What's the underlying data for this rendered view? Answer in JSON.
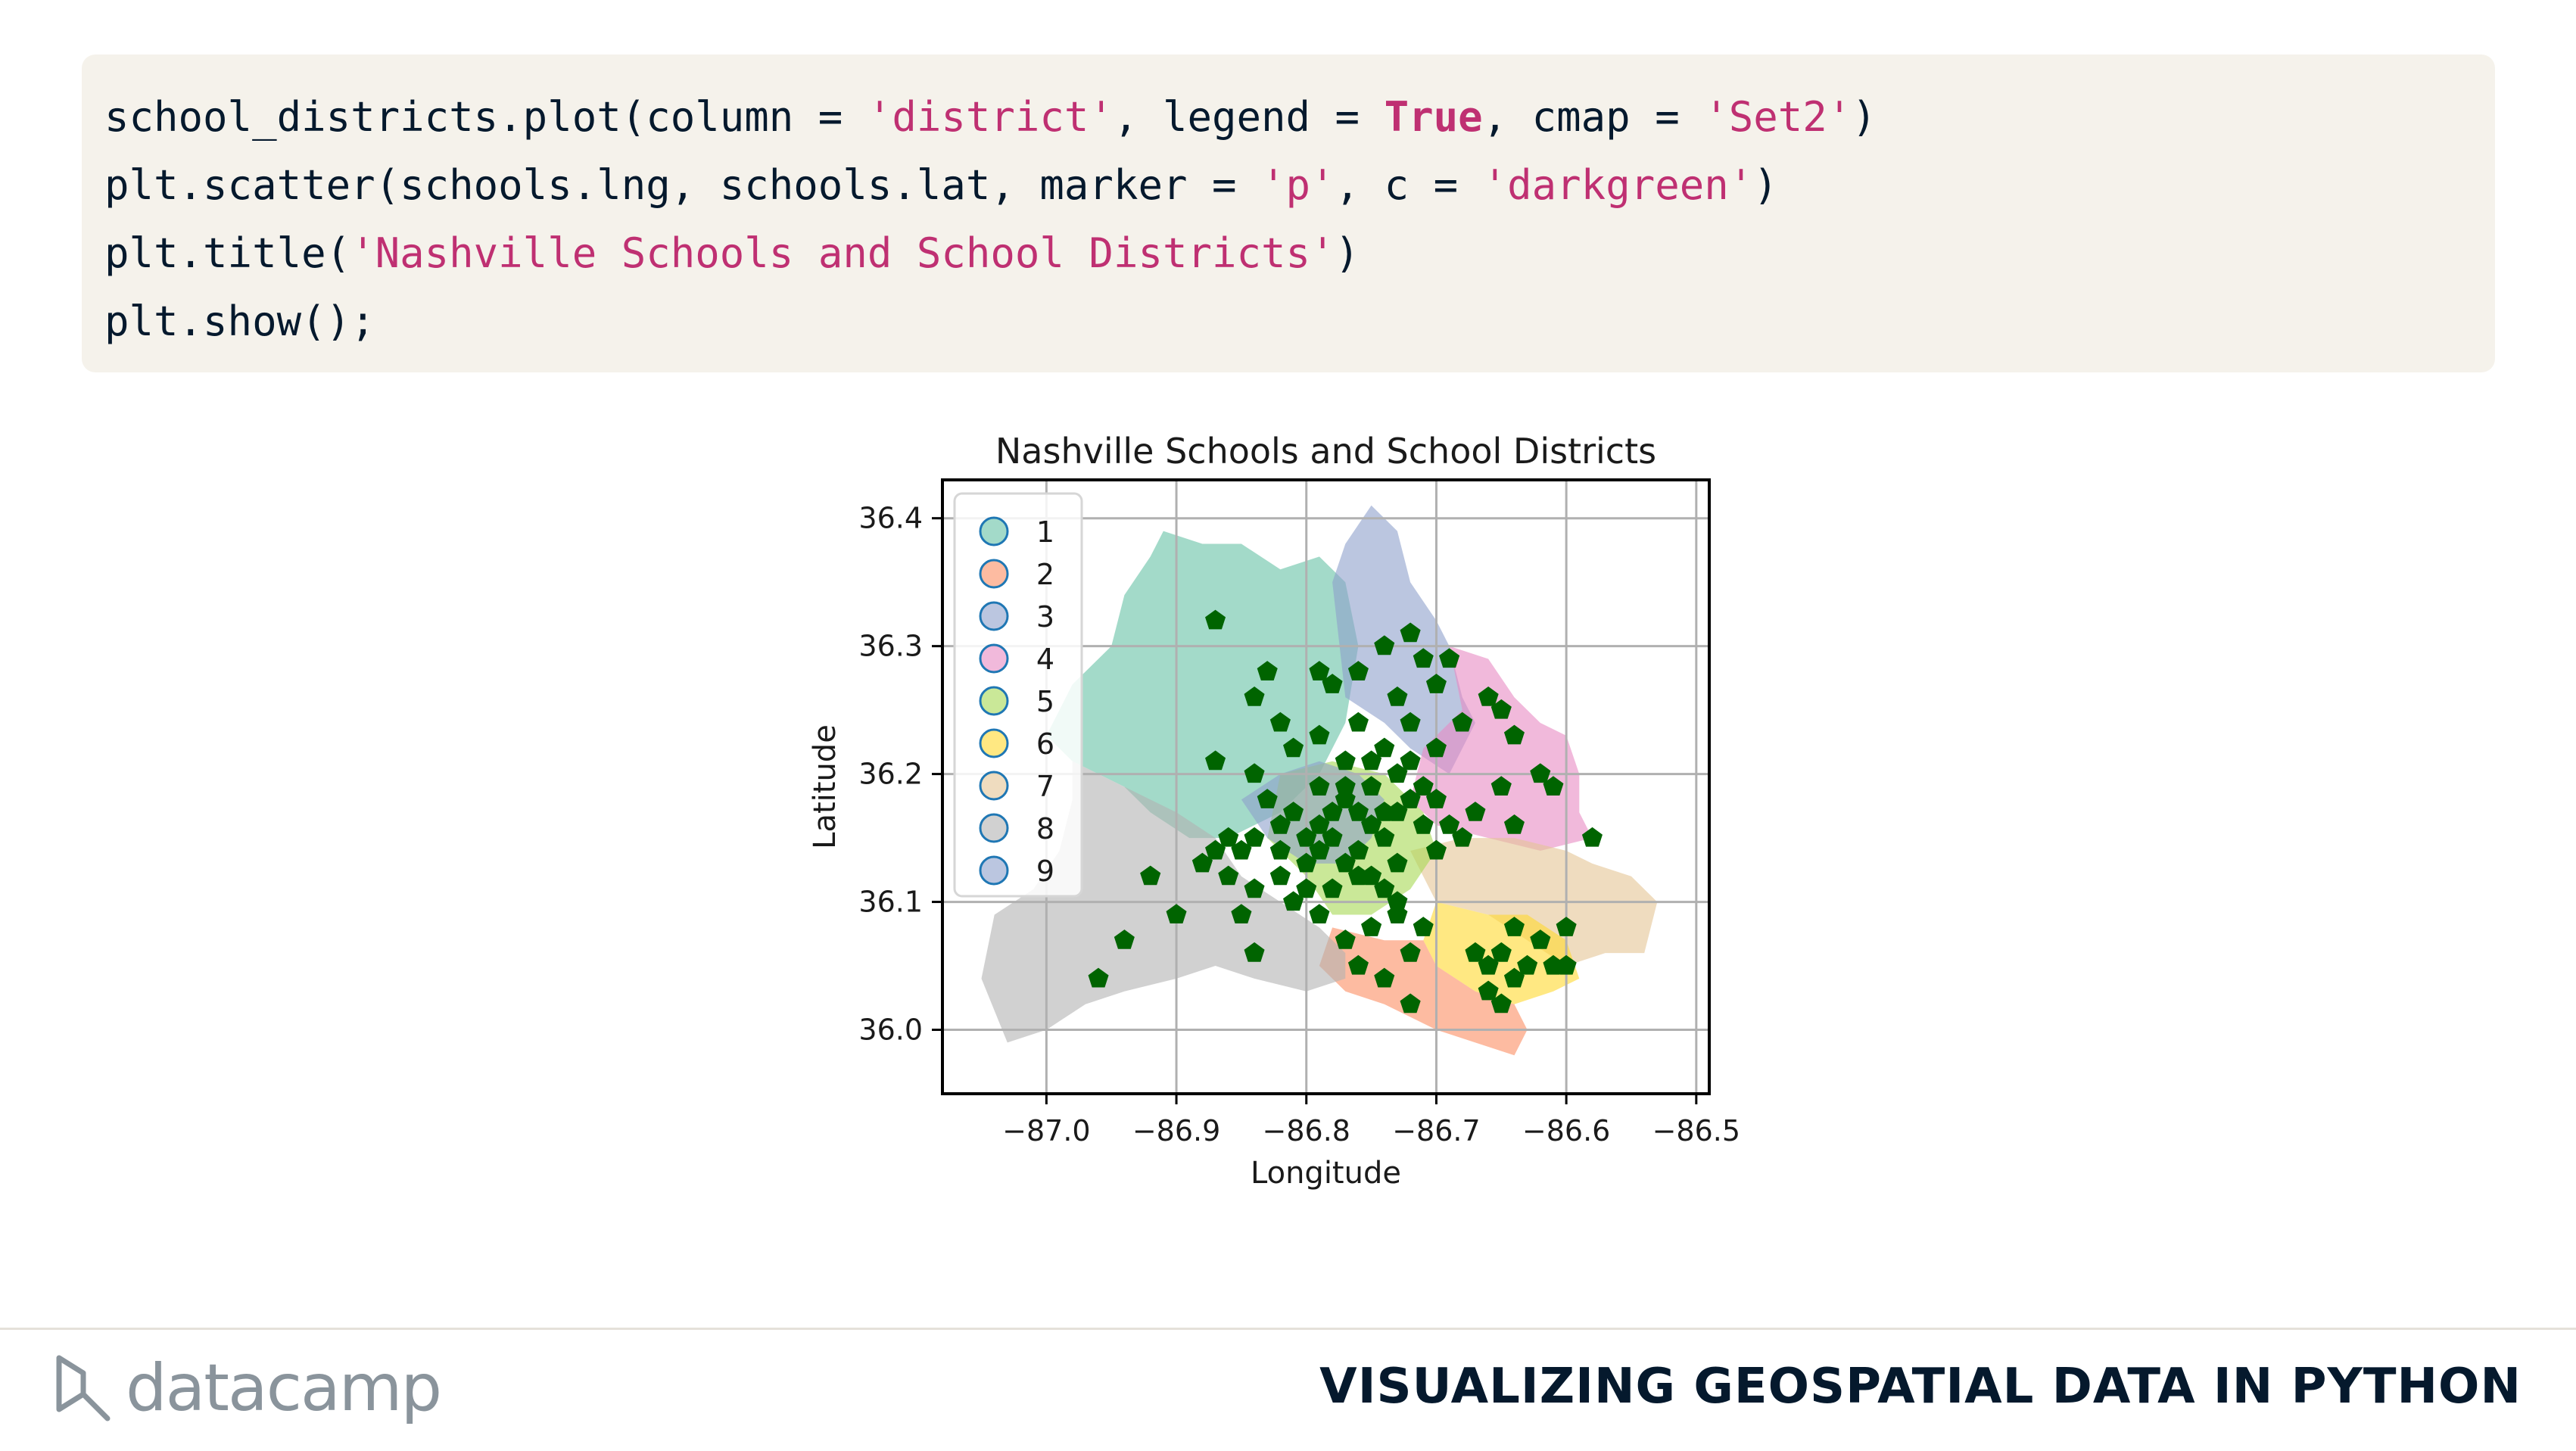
{
  "code": {
    "lines": [
      [
        {
          "t": "school_districts.plot(column = ",
          "k": "p"
        },
        {
          "t": "'district'",
          "k": "s"
        },
        {
          "t": ", legend = ",
          "k": "p"
        },
        {
          "t": "True",
          "k": "kw"
        },
        {
          "t": ", cmap = ",
          "k": "p"
        },
        {
          "t": "'Set2'",
          "k": "s"
        },
        {
          "t": ")",
          "k": "p"
        }
      ],
      [
        {
          "t": "plt.scatter(schools.lng, schools.lat, marker = ",
          "k": "p"
        },
        {
          "t": "'p'",
          "k": "s"
        },
        {
          "t": ", c = ",
          "k": "p"
        },
        {
          "t": "'darkgreen'",
          "k": "s"
        },
        {
          "t": ")",
          "k": "p"
        }
      ],
      [
        {
          "t": "plt.title(",
          "k": "p"
        },
        {
          "t": "'Nashville Schools and School Districts'",
          "k": "s"
        },
        {
          "t": ")",
          "k": "p"
        }
      ],
      [
        {
          "t": "plt.show();",
          "k": "p"
        }
      ]
    ]
  },
  "chart_data": {
    "type": "scatter",
    "title": "Nashville Schools and School Districts",
    "xlabel": "Longitude",
    "ylabel": "Latitude",
    "xlim": [
      -87.08,
      -86.49
    ],
    "ylim": [
      35.95,
      36.43
    ],
    "xticks": [
      -87.0,
      -86.9,
      -86.8,
      -86.7,
      -86.6,
      -86.5
    ],
    "xtick_labels": [
      "−87.0",
      "−86.9",
      "−86.8",
      "−86.7",
      "−86.6",
      "−86.5"
    ],
    "yticks": [
      36.0,
      36.1,
      36.2,
      36.3,
      36.4
    ],
    "ytick_labels": [
      "36.0",
      "36.1",
      "36.2",
      "36.3",
      "36.4"
    ],
    "grid": true,
    "legend_position": "upper-left",
    "legend": [
      {
        "label": "1",
        "color": "#66c2a5"
      },
      {
        "label": "2",
        "color": "#fc8d62"
      },
      {
        "label": "3",
        "color": "#8da0cb"
      },
      {
        "label": "4",
        "color": "#e78ac3"
      },
      {
        "label": "5",
        "color": "#a6d854"
      },
      {
        "label": "6",
        "color": "#ffd92f"
      },
      {
        "label": "7",
        "color": "#e5c494"
      },
      {
        "label": "8",
        "color": "#b3b3b3"
      },
      {
        "label": "9",
        "color": "#8da0cb"
      }
    ],
    "district_fill_opacity": 0.6,
    "districts": [
      {
        "district": "1",
        "color": "#66c2a5",
        "polygon": [
          [
            -86.91,
            36.39
          ],
          [
            -86.88,
            36.38
          ],
          [
            -86.85,
            36.38
          ],
          [
            -86.82,
            36.36
          ],
          [
            -86.79,
            36.37
          ],
          [
            -86.77,
            36.35
          ],
          [
            -86.76,
            36.3
          ],
          [
            -86.77,
            36.24
          ],
          [
            -86.79,
            36.2
          ],
          [
            -86.82,
            36.17
          ],
          [
            -86.86,
            36.15
          ],
          [
            -86.89,
            36.15
          ],
          [
            -86.92,
            36.17
          ],
          [
            -86.94,
            36.19
          ],
          [
            -86.98,
            36.21
          ],
          [
            -87.0,
            36.23
          ],
          [
            -86.98,
            36.27
          ],
          [
            -86.95,
            36.3
          ],
          [
            -86.94,
            36.34
          ],
          [
            -86.92,
            36.37
          ]
        ]
      },
      {
        "district": "3",
        "color": "#8da0cb",
        "polygon": [
          [
            -86.78,
            36.35
          ],
          [
            -86.77,
            36.38
          ],
          [
            -86.75,
            36.41
          ],
          [
            -86.73,
            36.39
          ],
          [
            -86.72,
            36.35
          ],
          [
            -86.7,
            36.32
          ],
          [
            -86.69,
            36.3
          ],
          [
            -86.68,
            36.26
          ],
          [
            -86.67,
            36.24
          ],
          [
            -86.69,
            36.2
          ],
          [
            -86.72,
            36.22
          ],
          [
            -86.74,
            36.24
          ],
          [
            -86.77,
            36.26
          ]
        ]
      },
      {
        "district": "4",
        "color": "#e78ac3",
        "polygon": [
          [
            -86.69,
            36.3
          ],
          [
            -86.66,
            36.29
          ],
          [
            -86.64,
            36.26
          ],
          [
            -86.62,
            36.24
          ],
          [
            -86.6,
            36.23
          ],
          [
            -86.59,
            36.2
          ],
          [
            -86.59,
            36.17
          ],
          [
            -86.58,
            36.15
          ],
          [
            -86.62,
            36.14
          ],
          [
            -86.66,
            36.15
          ],
          [
            -86.7,
            36.16
          ],
          [
            -86.72,
            36.18
          ],
          [
            -86.71,
            36.22
          ],
          [
            -86.68,
            36.25
          ]
        ]
      },
      {
        "district": "7",
        "color": "#e5c494",
        "polygon": [
          [
            -86.72,
            36.14
          ],
          [
            -86.68,
            36.15
          ],
          [
            -86.64,
            36.15
          ],
          [
            -86.6,
            36.14
          ],
          [
            -86.58,
            36.13
          ],
          [
            -86.55,
            36.12
          ],
          [
            -86.53,
            36.1
          ],
          [
            -86.54,
            36.06
          ],
          [
            -86.57,
            36.06
          ],
          [
            -86.6,
            36.05
          ],
          [
            -86.63,
            36.07
          ],
          [
            -86.66,
            36.09
          ],
          [
            -86.7,
            36.1
          ]
        ]
      },
      {
        "district": "6",
        "color": "#ffd92f",
        "polygon": [
          [
            -86.7,
            36.1
          ],
          [
            -86.66,
            36.09
          ],
          [
            -86.63,
            36.09
          ],
          [
            -86.6,
            36.07
          ],
          [
            -86.59,
            36.04
          ],
          [
            -86.61,
            36.03
          ],
          [
            -86.64,
            36.02
          ],
          [
            -86.67,
            36.03
          ],
          [
            -86.7,
            36.05
          ],
          [
            -86.71,
            36.07
          ]
        ]
      },
      {
        "district": "2",
        "color": "#fc8d62",
        "polygon": [
          [
            -86.78,
            36.08
          ],
          [
            -86.74,
            36.07
          ],
          [
            -86.71,
            36.07
          ],
          [
            -86.7,
            36.05
          ],
          [
            -86.67,
            36.03
          ],
          [
            -86.64,
            36.02
          ],
          [
            -86.63,
            36.0
          ],
          [
            -86.64,
            35.98
          ],
          [
            -86.67,
            35.99
          ],
          [
            -86.7,
            36.0
          ],
          [
            -86.74,
            36.02
          ],
          [
            -86.77,
            36.03
          ],
          [
            -86.79,
            36.05
          ]
        ]
      },
      {
        "district": "5",
        "color": "#a6d854",
        "polygon": [
          [
            -86.82,
            36.2
          ],
          [
            -86.78,
            36.21
          ],
          [
            -86.74,
            36.2
          ],
          [
            -86.71,
            36.17
          ],
          [
            -86.7,
            36.14
          ],
          [
            -86.72,
            36.11
          ],
          [
            -86.75,
            36.09
          ],
          [
            -86.78,
            36.09
          ],
          [
            -86.8,
            36.12
          ],
          [
            -86.83,
            36.15
          ]
        ]
      },
      {
        "district": "9",
        "color": "#8da0cb",
        "polygon": [
          [
            -86.85,
            36.18
          ],
          [
            -86.82,
            36.2
          ],
          [
            -86.79,
            36.21
          ],
          [
            -86.76,
            36.2
          ],
          [
            -86.74,
            36.18
          ],
          [
            -86.75,
            36.15
          ],
          [
            -86.77,
            36.13
          ],
          [
            -86.8,
            36.13
          ],
          [
            -86.83,
            36.15
          ]
        ]
      },
      {
        "district": "8",
        "color": "#b3b3b3",
        "polygon": [
          [
            -86.98,
            36.21
          ],
          [
            -86.94,
            36.19
          ],
          [
            -86.9,
            36.17
          ],
          [
            -86.87,
            36.15
          ],
          [
            -86.85,
            36.12
          ],
          [
            -86.82,
            36.1
          ],
          [
            -86.79,
            36.08
          ],
          [
            -86.77,
            36.06
          ],
          [
            -86.77,
            36.04
          ],
          [
            -86.8,
            36.03
          ],
          [
            -86.84,
            36.04
          ],
          [
            -86.87,
            36.05
          ],
          [
            -86.9,
            36.04
          ],
          [
            -86.94,
            36.03
          ],
          [
            -86.97,
            36.02
          ],
          [
            -87.0,
            36.0
          ],
          [
            -87.03,
            35.99
          ],
          [
            -87.05,
            36.04
          ],
          [
            -87.04,
            36.09
          ],
          [
            -87.01,
            36.11
          ],
          [
            -86.99,
            36.14
          ],
          [
            -86.98,
            36.18
          ]
        ]
      }
    ],
    "schools": [
      [
        -86.87,
        36.32
      ],
      [
        -86.74,
        36.3
      ],
      [
        -86.72,
        36.31
      ],
      [
        -86.73,
        36.26
      ],
      [
        -86.72,
        36.24
      ],
      [
        -86.76,
        36.28
      ],
      [
        -86.78,
        36.27
      ],
      [
        -86.7,
        36.27
      ],
      [
        -86.69,
        36.29
      ],
      [
        -86.71,
        36.29
      ],
      [
        -86.66,
        36.26
      ],
      [
        -86.65,
        36.25
      ],
      [
        -86.64,
        36.23
      ],
      [
        -86.68,
        36.24
      ],
      [
        -86.7,
        36.22
      ],
      [
        -86.72,
        36.21
      ],
      [
        -86.75,
        36.21
      ],
      [
        -86.77,
        36.21
      ],
      [
        -86.79,
        36.23
      ],
      [
        -86.81,
        36.22
      ],
      [
        -86.82,
        36.24
      ],
      [
        -86.84,
        36.26
      ],
      [
        -86.83,
        36.28
      ],
      [
        -86.79,
        36.28
      ],
      [
        -86.76,
        36.24
      ],
      [
        -86.74,
        36.22
      ],
      [
        -86.73,
        36.2
      ],
      [
        -86.71,
        36.19
      ],
      [
        -86.7,
        36.18
      ],
      [
        -86.69,
        36.16
      ],
      [
        -86.67,
        36.17
      ],
      [
        -86.65,
        36.19
      ],
      [
        -86.62,
        36.2
      ],
      [
        -86.61,
        36.19
      ],
      [
        -86.58,
        36.15
      ],
      [
        -86.87,
        36.21
      ],
      [
        -86.84,
        36.2
      ],
      [
        -86.83,
        36.18
      ],
      [
        -86.81,
        36.17
      ],
      [
        -86.79,
        36.19
      ],
      [
        -86.77,
        36.18
      ],
      [
        -86.76,
        36.17
      ],
      [
        -86.75,
        36.16
      ],
      [
        -86.74,
        36.15
      ],
      [
        -86.73,
        36.17
      ],
      [
        -86.72,
        36.18
      ],
      [
        -86.71,
        36.16
      ],
      [
        -86.7,
        36.14
      ],
      [
        -86.73,
        36.13
      ],
      [
        -86.75,
        36.12
      ],
      [
        -86.77,
        36.13
      ],
      [
        -86.79,
        36.14
      ],
      [
        -86.8,
        36.15
      ],
      [
        -86.82,
        36.16
      ],
      [
        -86.84,
        36.15
      ],
      [
        -86.85,
        36.14
      ],
      [
        -86.86,
        36.15
      ],
      [
        -86.87,
        36.14
      ],
      [
        -86.88,
        36.13
      ],
      [
        -86.86,
        36.12
      ],
      [
        -86.84,
        36.11
      ],
      [
        -86.82,
        36.12
      ],
      [
        -86.8,
        36.11
      ],
      [
        -86.78,
        36.11
      ],
      [
        -86.76,
        36.12
      ],
      [
        -86.74,
        36.11
      ],
      [
        -86.73,
        36.09
      ],
      [
        -86.75,
        36.08
      ],
      [
        -86.77,
        36.07
      ],
      [
        -86.76,
        36.05
      ],
      [
        -86.74,
        36.04
      ],
      [
        -86.72,
        36.06
      ],
      [
        -86.71,
        36.08
      ],
      [
        -86.73,
        36.1
      ],
      [
        -86.79,
        36.09
      ],
      [
        -86.81,
        36.1
      ],
      [
        -86.85,
        36.09
      ],
      [
        -86.92,
        36.12
      ],
      [
        -86.9,
        36.09
      ],
      [
        -86.94,
        36.07
      ],
      [
        -86.96,
        36.04
      ],
      [
        -86.84,
        36.06
      ],
      [
        -86.67,
        36.06
      ],
      [
        -86.66,
        36.05
      ],
      [
        -86.65,
        36.06
      ],
      [
        -86.64,
        36.04
      ],
      [
        -86.63,
        36.05
      ],
      [
        -86.62,
        36.07
      ],
      [
        -86.61,
        36.05
      ],
      [
        -86.6,
        36.05
      ],
      [
        -86.6,
        36.08
      ],
      [
        -86.66,
        36.03
      ],
      [
        -86.65,
        36.02
      ],
      [
        -86.64,
        36.08
      ],
      [
        -86.72,
        36.02
      ],
      [
        -86.68,
        36.15
      ],
      [
        -86.64,
        36.16
      ],
      [
        -86.77,
        36.19
      ],
      [
        -86.78,
        36.15
      ],
      [
        -86.8,
        36.13
      ],
      [
        -86.82,
        36.14
      ],
      [
        -86.76,
        36.14
      ],
      [
        -86.75,
        36.19
      ],
      [
        -86.78,
        36.17
      ],
      [
        -86.79,
        36.16
      ],
      [
        -86.74,
        36.17
      ]
    ]
  }
}
